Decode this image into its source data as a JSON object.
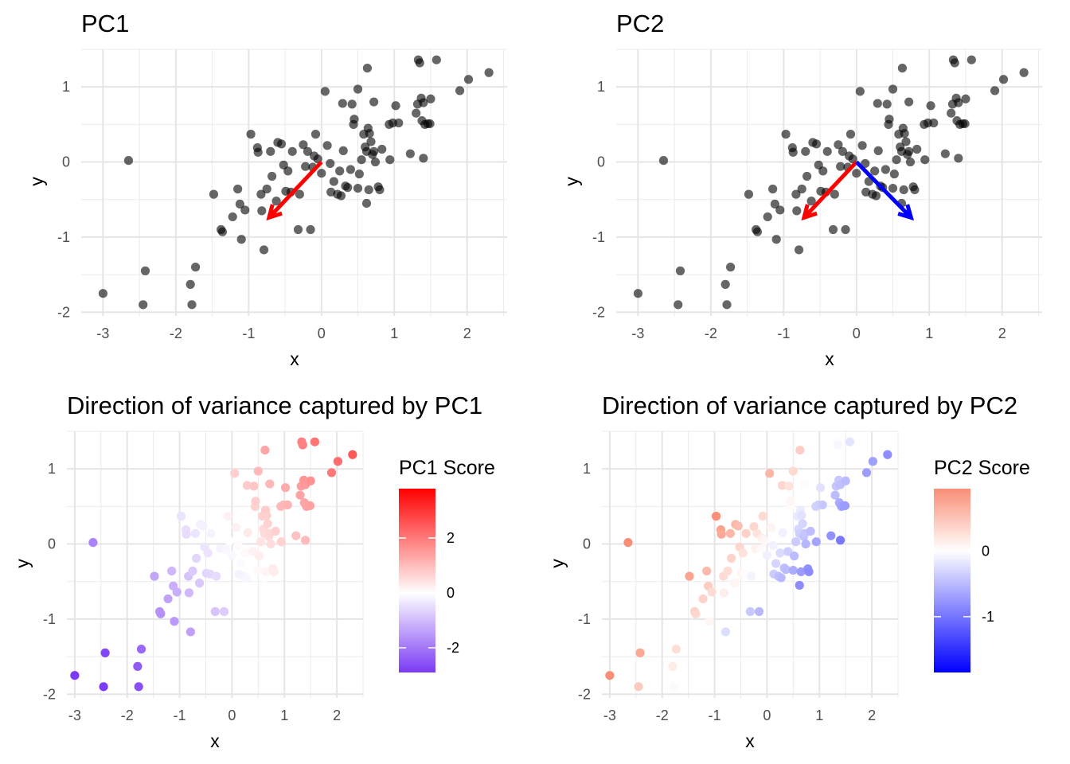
{
  "chart_data": [
    {
      "type": "scatter",
      "title": "PC1",
      "xlabel": "x",
      "ylabel": "y",
      "xlim": [
        -3.3,
        2.55
      ],
      "ylim": [
        -2.05,
        1.5
      ],
      "xticks": [
        -3,
        -2,
        -1,
        0,
        1,
        2
      ],
      "yticks": [
        -2,
        -1,
        0,
        1
      ],
      "grid": true,
      "point_color": "#000000",
      "arrows": [
        {
          "x0": 0,
          "y0": 0,
          "x1": -0.72,
          "y1": -0.74,
          "color": "#ff0000"
        }
      ]
    },
    {
      "type": "scatter",
      "title": "PC2",
      "xlabel": "x",
      "ylabel": "y",
      "xlim": [
        -3.3,
        2.55
      ],
      "ylim": [
        -2.05,
        1.5
      ],
      "xticks": [
        -3,
        -2,
        -1,
        0,
        1,
        2
      ],
      "yticks": [
        -2,
        -1,
        0,
        1
      ],
      "grid": true,
      "point_color": "#000000",
      "arrows": [
        {
          "x0": 0,
          "y0": 0,
          "x1": -0.72,
          "y1": -0.74,
          "color": "#ff0000"
        },
        {
          "x0": 0,
          "y0": 0,
          "x1": 0.75,
          "y1": -0.74,
          "color": "#0000ff"
        }
      ]
    },
    {
      "type": "scatter",
      "title": "Direction of variance captured by PC1",
      "xlabel": "x",
      "ylabel": "y",
      "xlim": [
        -3.15,
        2.5
      ],
      "ylim": [
        -2.05,
        1.5
      ],
      "xticks": [
        -3,
        -2,
        -1,
        0,
        1,
        2
      ],
      "yticks": [
        -2,
        -1,
        0,
        1
      ],
      "grid": true,
      "color_by": "pc1",
      "legend": {
        "title": "PC1 Score",
        "position": "right",
        "min": -2.9,
        "max": 3.8,
        "ticks": [
          -2,
          0,
          2
        ],
        "low_color": "#7b3af5",
        "mid_color": "#ffffff",
        "high_color": "#ff0000"
      }
    },
    {
      "type": "scatter",
      "title": "Direction of variance captured by PC2",
      "xlabel": "x",
      "ylabel": "y",
      "xlim": [
        -3.15,
        2.5
      ],
      "ylim": [
        -2.05,
        1.5
      ],
      "xticks": [
        -3,
        -2,
        -1,
        0,
        1,
        2
      ],
      "yticks": [
        -2,
        -1,
        0,
        1
      ],
      "grid": true,
      "color_by": "pc2",
      "legend": {
        "title": "PC2 Score",
        "position": "right",
        "min": -1.85,
        "max": 0.95,
        "ticks": [
          -1,
          0
        ],
        "low_color": "#0000ff",
        "mid_color": "#ffffff",
        "high_color": "#fa8e76"
      }
    }
  ],
  "points": [
    [
      -3.0,
      -1.75
    ],
    [
      -2.65,
      0.02
    ],
    [
      -2.45,
      -1.9
    ],
    [
      -2.42,
      -1.45
    ],
    [
      -1.8,
      -1.63
    ],
    [
      -1.78,
      -1.9
    ],
    [
      -1.73,
      -1.4
    ],
    [
      -1.48,
      -0.43
    ],
    [
      -1.38,
      -0.9
    ],
    [
      -1.36,
      -0.93
    ],
    [
      -1.22,
      -0.73
    ],
    [
      -1.15,
      -0.36
    ],
    [
      -1.12,
      -0.56
    ],
    [
      -1.1,
      -1.03
    ],
    [
      -1.05,
      -0.64
    ],
    [
      -0.97,
      0.37
    ],
    [
      -0.88,
      0.19
    ],
    [
      -0.87,
      0.13
    ],
    [
      -0.83,
      -0.43
    ],
    [
      -0.82,
      -0.65
    ],
    [
      -0.79,
      -1.17
    ],
    [
      -0.75,
      -0.36
    ],
    [
      -0.7,
      0.14
    ],
    [
      -0.68,
      -0.19
    ],
    [
      -0.62,
      -0.52
    ],
    [
      -0.6,
      0.26
    ],
    [
      -0.55,
      0.24
    ],
    [
      -0.52,
      -0.04
    ],
    [
      -0.49,
      -0.39
    ],
    [
      -0.46,
      -0.12
    ],
    [
      -0.42,
      -0.4
    ],
    [
      -0.4,
      0.14
    ],
    [
      -0.32,
      -0.9
    ],
    [
      -0.3,
      -0.43
    ],
    [
      -0.25,
      0.23
    ],
    [
      -0.22,
      -0.06
    ],
    [
      -0.19,
      0.14
    ],
    [
      -0.15,
      -0.9
    ],
    [
      -0.12,
      -0.07
    ],
    [
      -0.1,
      0.08
    ],
    [
      -0.08,
      0.37
    ],
    [
      -0.05,
      0.04
    ],
    [
      0.0,
      -0.15
    ],
    [
      0.05,
      0.94
    ],
    [
      0.08,
      0.22
    ],
    [
      0.12,
      -0.02
    ],
    [
      0.13,
      -0.4
    ],
    [
      0.17,
      -0.26
    ],
    [
      0.22,
      -0.43
    ],
    [
      0.25,
      -0.12
    ],
    [
      0.27,
      -0.45
    ],
    [
      0.29,
      0.78
    ],
    [
      0.3,
      0.15
    ],
    [
      0.33,
      -0.32
    ],
    [
      0.36,
      -0.34
    ],
    [
      0.4,
      -0.1
    ],
    [
      0.42,
      0.77
    ],
    [
      0.44,
      0.5
    ],
    [
      0.45,
      0.57
    ],
    [
      0.5,
      0.97
    ],
    [
      0.5,
      -0.35
    ],
    [
      0.52,
      -0.16
    ],
    [
      0.55,
      0.03
    ],
    [
      0.58,
      0.37
    ],
    [
      0.6,
      0.2
    ],
    [
      0.62,
      0.14
    ],
    [
      0.62,
      -0.55
    ],
    [
      0.63,
      1.25
    ],
    [
      0.64,
      0.45
    ],
    [
      0.65,
      -0.37
    ],
    [
      0.66,
      0.38
    ],
    [
      0.68,
      0.27
    ],
    [
      0.7,
      0.1
    ],
    [
      0.72,
      0.14
    ],
    [
      0.72,
      0.8
    ],
    [
      0.74,
      0.0
    ],
    [
      0.78,
      -0.33
    ],
    [
      0.8,
      -0.37
    ],
    [
      0.83,
      0.17
    ],
    [
      0.93,
      0.5
    ],
    [
      0.94,
      0.03
    ],
    [
      0.98,
      0.52
    ],
    [
      1.02,
      0.75
    ],
    [
      1.06,
      0.52
    ],
    [
      1.22,
      0.11
    ],
    [
      1.3,
      0.65
    ],
    [
      1.32,
      0.77
    ],
    [
      1.33,
      1.36
    ],
    [
      1.35,
      1.32
    ],
    [
      1.37,
      0.85
    ],
    [
      1.38,
      0.55
    ],
    [
      1.4,
      0.79
    ],
    [
      1.4,
      0.05
    ],
    [
      1.42,
      0.5
    ],
    [
      1.46,
      0.51
    ],
    [
      1.49,
      0.51
    ],
    [
      1.5,
      0.84
    ],
    [
      1.58,
      1.36
    ],
    [
      1.9,
      0.95
    ],
    [
      2.02,
      1.1
    ],
    [
      2.3,
      1.19
    ]
  ]
}
